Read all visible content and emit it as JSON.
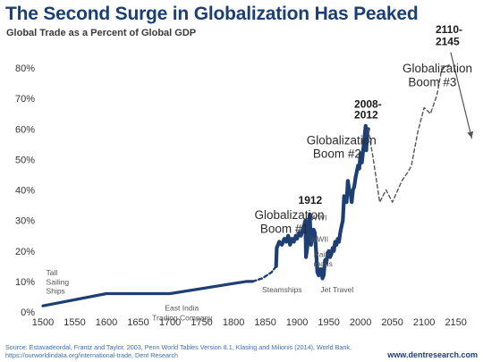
{
  "title": "The Second Surge in Globalization Has Peaked",
  "subtitle": "Global Trade as a Percent of Global GDP",
  "source": "Source: Estavadeordal, Frantz and Taylor, 2003, Penn World Tables Version 8.1, Klasing and Milionis (2014), World Bank, https://ourworldindata.org/international-trade, Dent Research",
  "website": "www.dentresearch.com",
  "colors": {
    "series": "#1e3f74",
    "dashed": "#555555",
    "title": "#1b3f73"
  },
  "chart_data": {
    "type": "line",
    "title": "The Second Surge in Globalization Has Peaked",
    "subtitle": "Global Trade as a Percent of Global GDP",
    "xlim": [
      1500,
      2180
    ],
    "ylim": [
      0,
      80
    ],
    "x_ticks": [
      1500,
      1550,
      1600,
      1650,
      1700,
      1750,
      1800,
      1850,
      1900,
      1950,
      2000,
      2050,
      2100,
      2150
    ],
    "y_ticks": [
      "0%",
      "10%",
      "20%",
      "30%",
      "40%",
      "50%",
      "60%",
      "70%",
      "80%"
    ],
    "y_tick_values": [
      0,
      10,
      20,
      30,
      40,
      50,
      60,
      70,
      80
    ],
    "grid": false,
    "series": [
      {
        "style": "solid",
        "points": [
          [
            1500,
            2
          ],
          [
            1600,
            6
          ],
          [
            1700,
            6
          ],
          [
            1820,
            10
          ],
          [
            1830,
            10
          ]
        ]
      },
      {
        "style": "dashed",
        "points": [
          [
            1830,
            10
          ],
          [
            1845,
            11
          ],
          [
            1860,
            13
          ],
          [
            1867,
            15
          ]
        ]
      },
      {
        "style": "solid-thick",
        "points": [
          [
            1867,
            15
          ],
          [
            1868,
            21
          ],
          [
            1872,
            23
          ],
          [
            1876,
            22
          ],
          [
            1880,
            24
          ],
          [
            1883,
            23
          ],
          [
            1886,
            25
          ],
          [
            1889,
            22
          ],
          [
            1892,
            24
          ],
          [
            1895,
            23
          ],
          [
            1898,
            25
          ],
          [
            1900,
            24
          ],
          [
            1903,
            26
          ],
          [
            1906,
            25
          ],
          [
            1909,
            27
          ],
          [
            1912,
            29
          ],
          [
            1913,
            30
          ],
          [
            1914,
            18
          ],
          [
            1916,
            21
          ],
          [
            1918,
            28
          ],
          [
            1920,
            32
          ],
          [
            1922,
            22
          ],
          [
            1924,
            25
          ],
          [
            1926,
            27
          ],
          [
            1928,
            26
          ],
          [
            1930,
            20
          ],
          [
            1932,
            13
          ],
          [
            1934,
            12
          ],
          [
            1936,
            14
          ],
          [
            1938,
            14
          ],
          [
            1940,
            11
          ],
          [
            1942,
            12
          ],
          [
            1944,
            17
          ],
          [
            1946,
            16
          ],
          [
            1948,
            19
          ],
          [
            1950,
            20
          ],
          [
            1952,
            18
          ],
          [
            1954,
            19
          ],
          [
            1956,
            21
          ],
          [
            1958,
            20
          ],
          [
            1960,
            23
          ],
          [
            1962,
            22
          ],
          [
            1964,
            24
          ],
          [
            1966,
            23
          ],
          [
            1968,
            26
          ],
          [
            1970,
            28
          ],
          [
            1972,
            30
          ],
          [
            1974,
            38
          ],
          [
            1976,
            37
          ],
          [
            1978,
            36
          ],
          [
            1980,
            43
          ],
          [
            1982,
            40
          ],
          [
            1984,
            39
          ],
          [
            1986,
            36
          ],
          [
            1988,
            40
          ],
          [
            1990,
            41
          ],
          [
            1992,
            44
          ],
          [
            1994,
            46
          ],
          [
            1996,
            48
          ],
          [
            1998,
            47
          ],
          [
            2000,
            52
          ],
          [
            2002,
            49
          ],
          [
            2004,
            53
          ],
          [
            2006,
            57
          ],
          [
            2008,
            61
          ],
          [
            2009,
            53
          ],
          [
            2010,
            58
          ],
          [
            2012,
            60
          ]
        ]
      },
      {
        "style": "dashed",
        "points": [
          [
            2012,
            60
          ],
          [
            2020,
            50
          ],
          [
            2030,
            36
          ],
          [
            2040,
            40
          ],
          [
            2050,
            36
          ],
          [
            2065,
            43
          ],
          [
            2075,
            46
          ],
          [
            2080,
            48
          ],
          [
            2090,
            59
          ],
          [
            2100,
            67
          ],
          [
            2110,
            65
          ],
          [
            2120,
            71
          ],
          [
            2128,
            80
          ],
          [
            2140,
            81
          ]
        ]
      },
      {
        "style": "solid-thin",
        "points": [
          [
            2142,
            85
          ],
          [
            2175,
            57
          ]
        ]
      }
    ],
    "annotations": [
      {
        "text": "Tall",
        "x": 1505,
        "y": 12,
        "class": "small"
      },
      {
        "text": "Sailing",
        "x": 1505,
        "y": 9,
        "class": "small"
      },
      {
        "text": "Ships",
        "x": 1505,
        "y": 6,
        "class": "small"
      },
      {
        "text": "East India",
        "x": 1692,
        "y": 0.5,
        "class": "small"
      },
      {
        "text": "Trading Company",
        "x": 1672,
        "y": -2.8,
        "class": "small"
      },
      {
        "text": "Steamships",
        "x": 1845,
        "y": 6.5,
        "class": "small"
      },
      {
        "text": "Rail-",
        "x": 1926,
        "y": 18,
        "class": "small"
      },
      {
        "text": "roads",
        "x": 1926,
        "y": 15,
        "class": "small"
      },
      {
        "text": "Jet Travel",
        "x": 1937,
        "y": 6.5,
        "class": "small"
      },
      {
        "text": "WWI",
        "x": 1921,
        "y": 30,
        "class": "small"
      },
      {
        "text": "WWII",
        "x": 1920,
        "y": 23,
        "class": "small"
      },
      {
        "text": "1912",
        "x": 1902,
        "y": 35.5,
        "class": "bold"
      },
      {
        "text": "Globalization",
        "x": 1833,
        "y": 30.5,
        "class": "big"
      },
      {
        "text": "Boom #1",
        "x": 1842,
        "y": 26,
        "class": "big"
      },
      {
        "text": "2008-",
        "x": 1990,
        "y": 67,
        "class": "bold"
      },
      {
        "text": "2012",
        "x": 1990,
        "y": 63.5,
        "class": "bold"
      },
      {
        "text": "Globalization",
        "x": 1915,
        "y": 55,
        "class": "big"
      },
      {
        "text": "Boom #2",
        "x": 1925,
        "y": 50.5,
        "class": "big"
      },
      {
        "text": "2110-",
        "x": 2118,
        "y": 91.5,
        "class": "bold"
      },
      {
        "text": "2145",
        "x": 2118,
        "y": 87.5,
        "class": "bold"
      },
      {
        "text": "Globalization",
        "x": 2066,
        "y": 78.5,
        "class": "big"
      },
      {
        "text": "Boom #3",
        "x": 2075,
        "y": 74,
        "class": "big"
      }
    ]
  }
}
